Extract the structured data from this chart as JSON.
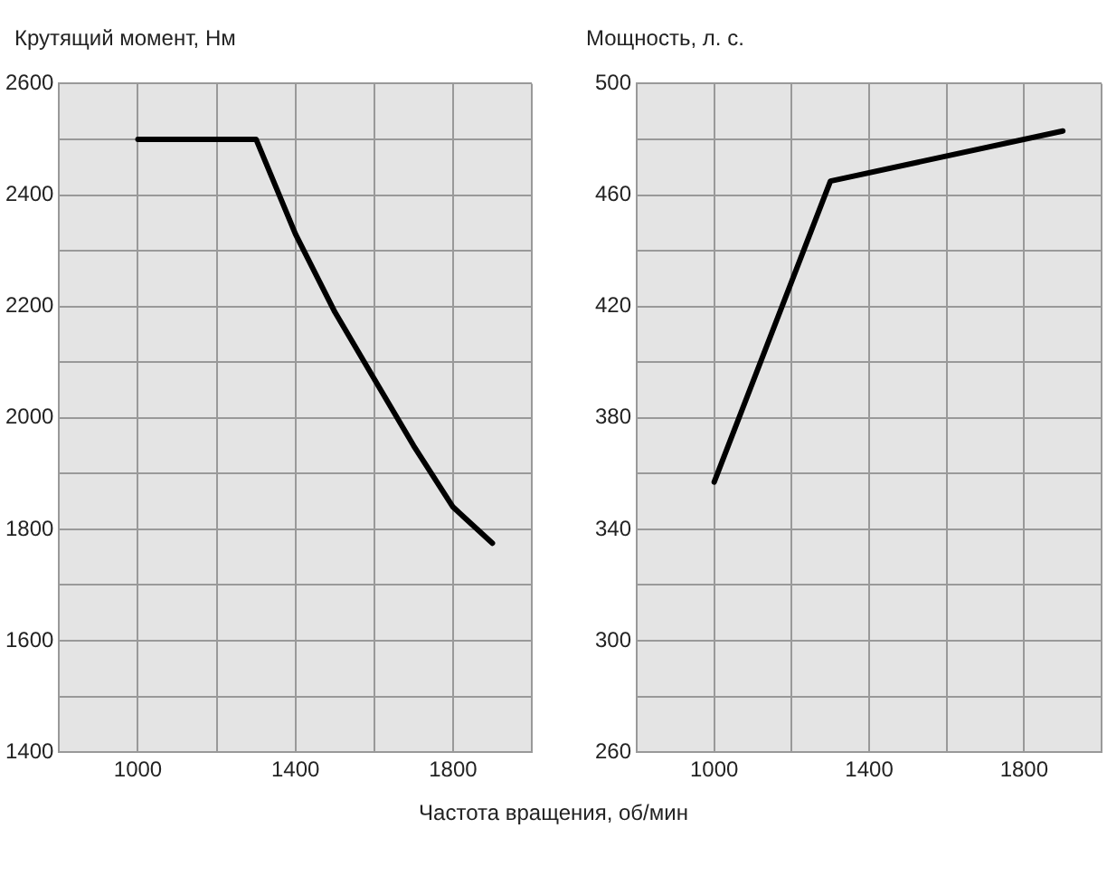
{
  "chart_data": [
    {
      "type": "line",
      "ylabel": "Крутящий момент, Нм",
      "xlabel": "Частота вращения, об/мин",
      "x": [
        1000,
        1300,
        1400,
        1500,
        1600,
        1700,
        1800,
        1900
      ],
      "series": [
        {
          "color": "#000000",
          "values": [
            2500,
            2500,
            2330,
            2190,
            2070,
            1950,
            1840,
            1775
          ]
        }
      ],
      "xlim": [
        800,
        2000
      ],
      "xticks": [
        {
          "value": 800,
          "label": null
        },
        1000,
        {
          "value": 1200,
          "label": null
        },
        1400,
        {
          "value": 1600,
          "label": null
        },
        1800,
        {
          "value": 2000,
          "label": null
        }
      ],
      "ylim": [
        1400,
        2600
      ],
      "yticks": [
        1400,
        {
          "value": 1500,
          "label": null
        },
        1600,
        {
          "value": 1700,
          "label": null
        },
        1800,
        {
          "value": 1900,
          "label": null
        },
        2000,
        {
          "value": 2100,
          "label": null
        },
        2200,
        {
          "value": 2300,
          "label": null
        },
        2400,
        {
          "value": 2500,
          "label": null
        },
        2600
      ],
      "grid": true,
      "legend": false,
      "marker": "none",
      "line_style": "solid"
    },
    {
      "type": "line",
      "ylabel": "Мощность, л. с.",
      "x": [
        1000,
        1300,
        1900
      ],
      "series": [
        {
          "color": "#000000",
          "values": [
            357,
            465,
            483
          ]
        }
      ],
      "xlim": [
        800,
        2000
      ],
      "xticks": [
        {
          "value": 800,
          "label": null
        },
        1000,
        {
          "value": 1200,
          "label": null
        },
        1400,
        {
          "value": 1600,
          "label": null
        },
        1800,
        {
          "value": 2000,
          "label": null
        }
      ],
      "ylim": [
        260,
        500
      ],
      "yticks": [
        260,
        {
          "value": 280,
          "label": null
        },
        300,
        {
          "value": 320,
          "label": null
        },
        340,
        {
          "value": 360,
          "label": null
        },
        380,
        {
          "value": 400,
          "label": null
        },
        420,
        {
          "value": 440,
          "label": null
        },
        460,
        {
          "value": 480,
          "label": null
        },
        500
      ],
      "grid": true,
      "legend": false,
      "marker": "none",
      "line_style": "solid"
    }
  ]
}
